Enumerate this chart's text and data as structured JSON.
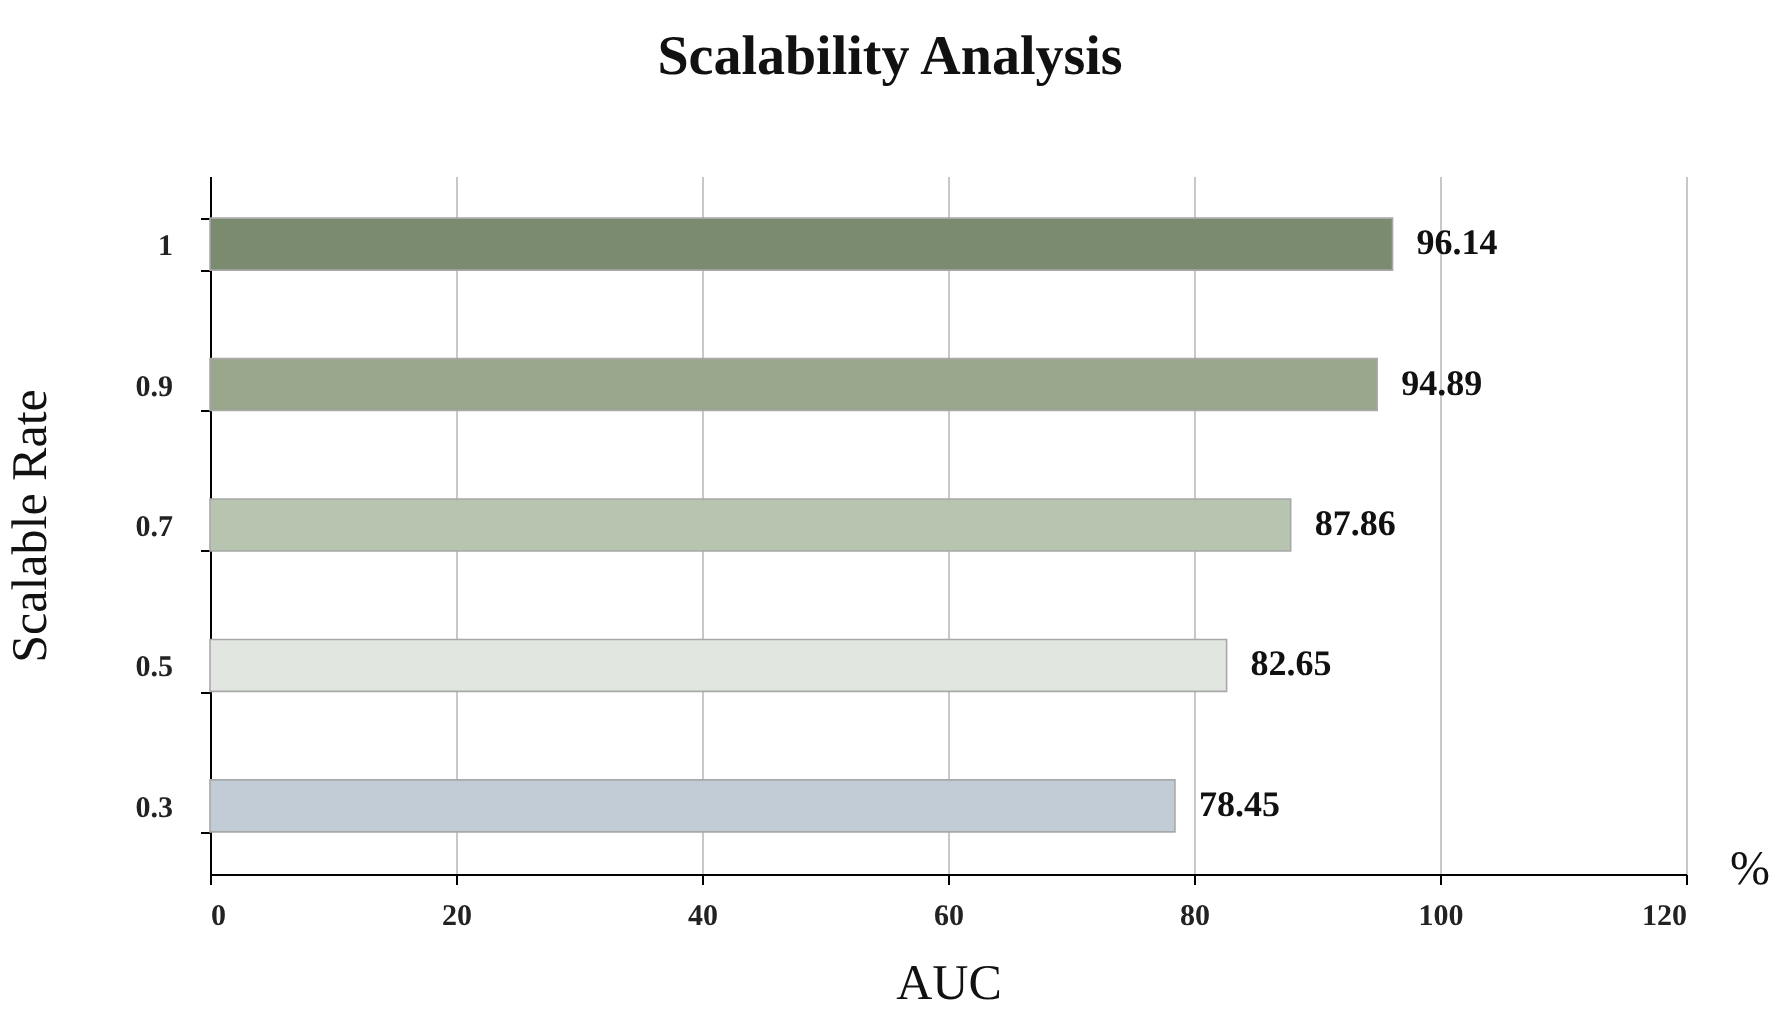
{
  "chart_data": {
    "type": "bar",
    "orientation": "horizontal",
    "title": "Scalability Analysis",
    "xlabel": "AUC",
    "ylabel": "Scalable Rate",
    "categories": [
      "1",
      "0.9",
      "0.7",
      "0.5",
      "0.3"
    ],
    "values": [
      96.14,
      94.89,
      87.86,
      82.65,
      78.45
    ],
    "colors": [
      "#7b8b6f",
      "#98a68b",
      "#b7c5b0",
      "#e2e6e0",
      "#c2ccd7"
    ],
    "xlim": [
      0,
      120
    ],
    "xticks": [
      0,
      20,
      40,
      60,
      80,
      100,
      120
    ],
    "grid": "x",
    "data_labels": true,
    "annotations": [
      "%"
    ]
  }
}
